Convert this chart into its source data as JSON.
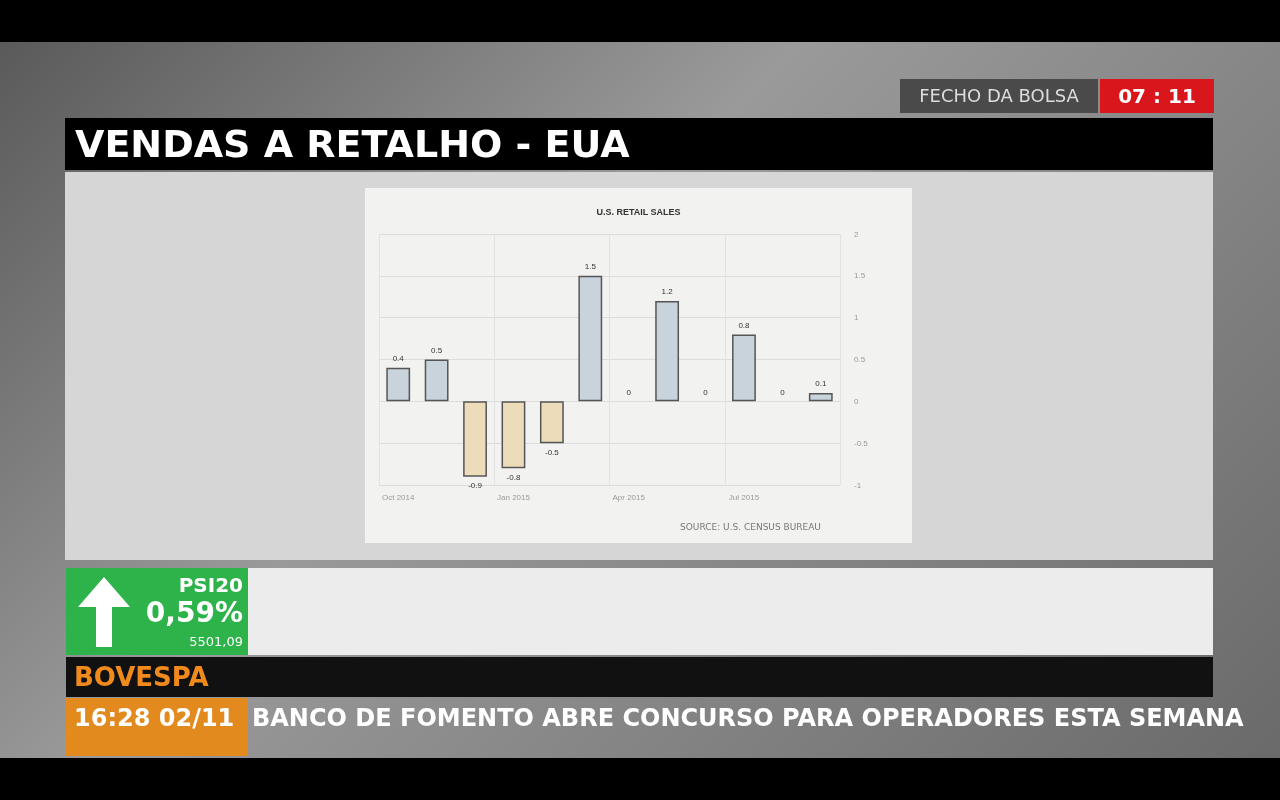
{
  "chart_data": {
    "type": "bar",
    "title": "VENDAS A RETALHO - EUA",
    "subtitle": "U.S. RETAIL SALES",
    "categories": [
      "Oct 2014",
      null,
      null,
      "Jan 2015",
      null,
      null,
      "Apr 2015",
      null,
      null,
      "Jul 2015",
      null,
      null
    ],
    "values": [
      0.4,
      0.5,
      -0.9,
      -0.8,
      -0.5,
      1.5,
      0,
      1.2,
      0,
      0.8,
      0,
      0.1
    ],
    "colors": [
      "#c9d3dc",
      "#c9d3dc",
      "#eddcb9",
      "#eddcb9",
      "#eddcb9",
      "#c9d3dc",
      "#c9d3dc",
      "#c9d3dc",
      "#c9d3dc",
      "#c9d3dc",
      "#c9d3dc",
      "#c9d3dc"
    ],
    "data_labels": true,
    "ylim": [
      -1,
      2
    ],
    "yticks": [
      -1,
      -0.5,
      0,
      0.5,
      1,
      1.5,
      2
    ],
    "grid": true,
    "annotations": [
      "SOURCE: U.S. CENSUS BUREAU",
      "FECHO DA BOLSA",
      "07 : 11",
      "PSI20",
      "0,59%",
      "5501,09",
      "BOVESPA",
      "16:28 02/11",
      "BANCO DE FOMENTO ABRE CONCURSO PARA OPERADORES ESTA SEMANA"
    ]
  }
}
